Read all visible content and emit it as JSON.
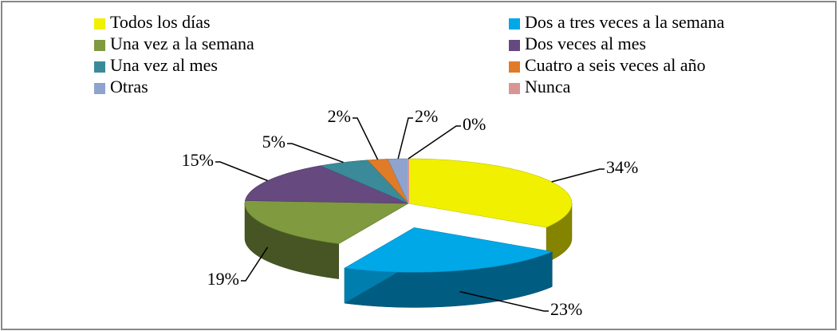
{
  "chart_data": {
    "type": "pie",
    "categories": [
      "Todos los días",
      "Dos a tres veces a la semana",
      "Una vez a la semana",
      "Dos veces al mes",
      "Una vez al mes",
      "Cuatro a seis veces al año",
      "Otras",
      "Nunca"
    ],
    "values": [
      34,
      23,
      19,
      15,
      5,
      2,
      2,
      0
    ],
    "value_labels": [
      "34%",
      "23%",
      "19%",
      "15%",
      "5%",
      "2%",
      "2%",
      "0%"
    ],
    "colors": [
      "#f0f000",
      "#00a8e8",
      "#7f9a3f",
      "#65497f",
      "#3a8a9a",
      "#e07b28",
      "#8fa3cf",
      "#d99594"
    ],
    "legend": "top"
  }
}
